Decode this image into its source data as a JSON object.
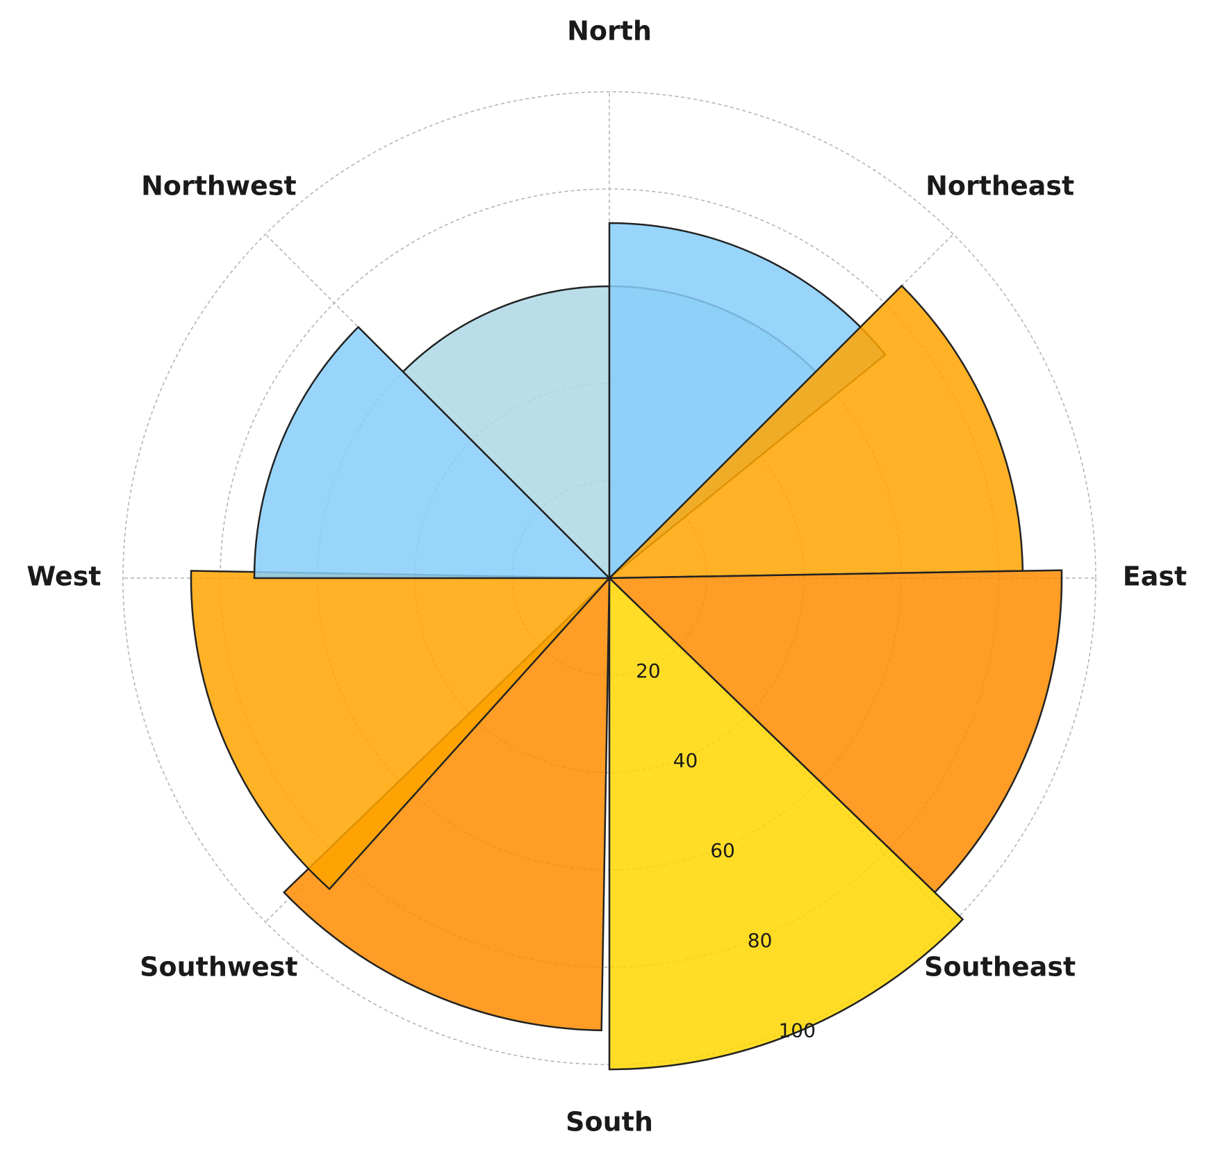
{
  "chart_data": {
    "type": "polar-bar",
    "title": "",
    "directions": [
      "North",
      "Northeast",
      "East",
      "Southeast",
      "South",
      "Southwest",
      "West",
      "Northwest"
    ],
    "angles_deg": [
      0,
      45,
      90,
      135,
      180,
      225,
      270,
      315
    ],
    "radial_ticks": [
      20,
      40,
      60,
      80,
      100
    ],
    "rlim": [
      0,
      100
    ],
    "grid": true,
    "series": [
      {
        "start_deg": 0,
        "end_deg": 45,
        "value": 60,
        "color": "#add8e6"
      },
      {
        "start_deg": -45,
        "end_deg": 0,
        "value": 60,
        "color": "#add8e6"
      },
      {
        "start_deg": 0,
        "end_deg": 51,
        "value": 73,
        "color": "#87cefa"
      },
      {
        "start_deg": 45,
        "end_deg": 89,
        "value": 85,
        "color": "#ffa500"
      },
      {
        "start_deg": 89,
        "end_deg": 134,
        "value": 93,
        "color": "#ff8c00"
      },
      {
        "start_deg": 134,
        "end_deg": 180,
        "value": 101,
        "color": "#ffd700"
      },
      {
        "start_deg": 181,
        "end_deg": 226,
        "value": 93,
        "color": "#ff8c00"
      },
      {
        "start_deg": 222,
        "end_deg": 271,
        "value": 86,
        "color": "#ffa500"
      },
      {
        "start_deg": 270,
        "end_deg": 315,
        "value": 73,
        "color": "#87cefa"
      }
    ]
  }
}
